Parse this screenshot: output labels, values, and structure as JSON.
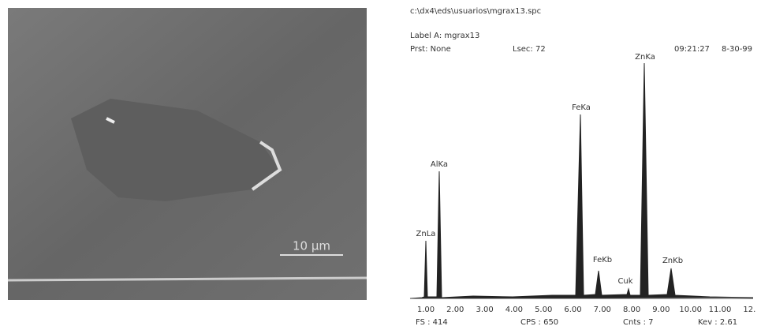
{
  "sem_image": {
    "scale_bar": "10 μm"
  },
  "spectrum": {
    "file": "c:\\dx4\\eds\\usuarios\\mgrax13.spc",
    "label": "Label A: mgrax13",
    "preset": "Prst: None",
    "lsec": "Lsec: 72",
    "time": "09:21:27",
    "date": "8-30-99",
    "peaks": [
      "ZnLa",
      "AlKa",
      "FeKa",
      "FeKb",
      "Cuk",
      "ZnKa",
      "ZnKb"
    ],
    "x_ticks": [
      "1.00",
      "2.00",
      "3.00",
      "4.00",
      "5.00",
      "6.00",
      "7.00",
      "8.00",
      "9.00",
      "10.00",
      "11.00",
      "12."
    ],
    "footer": [
      "FS : 414",
      "CPS : 650",
      "Cnts : 7",
      "Kev : 2.61"
    ]
  }
}
